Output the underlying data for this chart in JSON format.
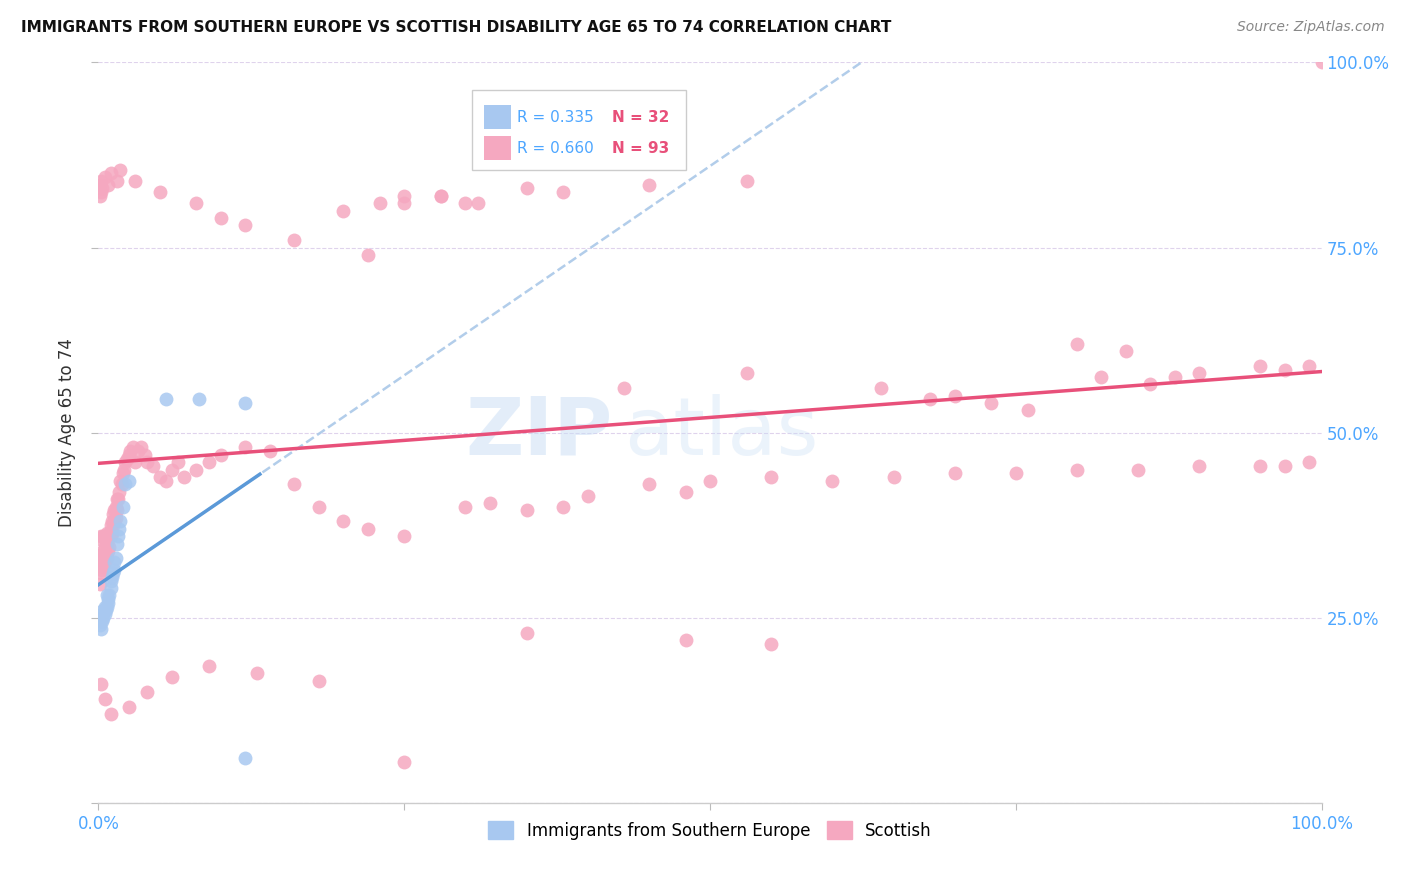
{
  "title": "IMMIGRANTS FROM SOUTHERN EUROPE VS SCOTTISH DISABILITY AGE 65 TO 74 CORRELATION CHART",
  "source": "Source: ZipAtlas.com",
  "ylabel": "Disability Age 65 to 74",
  "legend_label1": "Immigrants from Southern Europe",
  "legend_label2": "Scottish",
  "R1": 0.335,
  "N1": 32,
  "R2": 0.66,
  "N2": 93,
  "color_blue": "#a8c8f0",
  "color_pink": "#f5a8c0",
  "color_blue_line": "#5b99d8",
  "color_pink_line": "#e8507a",
  "color_dash": "#aac8e8",
  "xlim": [
    0.0,
    1.0
  ],
  "ylim": [
    0.0,
    1.0
  ],
  "blue_x": [
    0.001,
    0.002,
    0.002,
    0.003,
    0.003,
    0.004,
    0.004,
    0.005,
    0.005,
    0.006,
    0.007,
    0.007,
    0.008,
    0.008,
    0.009,
    0.01,
    0.01,
    0.011,
    0.012,
    0.013,
    0.013,
    0.014,
    0.015,
    0.016,
    0.017,
    0.018,
    0.02,
    0.022,
    0.025,
    0.055,
    0.082,
    0.12
  ],
  "blue_y": [
    0.24,
    0.235,
    0.25,
    0.245,
    0.255,
    0.25,
    0.26,
    0.255,
    0.265,
    0.26,
    0.265,
    0.28,
    0.27,
    0.275,
    0.28,
    0.29,
    0.3,
    0.305,
    0.31,
    0.315,
    0.325,
    0.33,
    0.35,
    0.36,
    0.37,
    0.38,
    0.4,
    0.43,
    0.435,
    0.545,
    0.545,
    0.54
  ],
  "pink_x": [
    0.001,
    0.001,
    0.001,
    0.002,
    0.002,
    0.002,
    0.003,
    0.003,
    0.003,
    0.004,
    0.004,
    0.004,
    0.005,
    0.005,
    0.005,
    0.006,
    0.006,
    0.007,
    0.007,
    0.007,
    0.008,
    0.008,
    0.009,
    0.009,
    0.01,
    0.01,
    0.011,
    0.011,
    0.012,
    0.012,
    0.013,
    0.013,
    0.014,
    0.014,
    0.015,
    0.015,
    0.016,
    0.017,
    0.018,
    0.019,
    0.02,
    0.021,
    0.022,
    0.023,
    0.025,
    0.026,
    0.028,
    0.03,
    0.032,
    0.035,
    0.038,
    0.04,
    0.045,
    0.05,
    0.055,
    0.06,
    0.065,
    0.07,
    0.08,
    0.09,
    0.1,
    0.12,
    0.14,
    0.16,
    0.18,
    0.2,
    0.22,
    0.25,
    0.3,
    0.32,
    0.35,
    0.38,
    0.4,
    0.45,
    0.48,
    0.5,
    0.55,
    0.6,
    0.65,
    0.7,
    0.75,
    0.8,
    0.85,
    0.9,
    0.95,
    0.97,
    0.99,
    1.0,
    0.2,
    0.23,
    0.25,
    0.28,
    0.31
  ],
  "pink_y": [
    0.295,
    0.32,
    0.335,
    0.31,
    0.33,
    0.36,
    0.315,
    0.335,
    0.355,
    0.32,
    0.34,
    0.36,
    0.325,
    0.345,
    0.36,
    0.335,
    0.355,
    0.33,
    0.35,
    0.365,
    0.34,
    0.36,
    0.345,
    0.365,
    0.36,
    0.375,
    0.365,
    0.38,
    0.375,
    0.39,
    0.38,
    0.395,
    0.385,
    0.4,
    0.395,
    0.41,
    0.41,
    0.42,
    0.435,
    0.43,
    0.445,
    0.45,
    0.46,
    0.465,
    0.47,
    0.475,
    0.48,
    0.46,
    0.475,
    0.48,
    0.47,
    0.46,
    0.455,
    0.44,
    0.435,
    0.45,
    0.46,
    0.44,
    0.45,
    0.46,
    0.47,
    0.48,
    0.475,
    0.43,
    0.4,
    0.38,
    0.37,
    0.36,
    0.4,
    0.405,
    0.395,
    0.4,
    0.415,
    0.43,
    0.42,
    0.435,
    0.44,
    0.435,
    0.44,
    0.445,
    0.445,
    0.45,
    0.45,
    0.455,
    0.455,
    0.455,
    0.46,
    1.0,
    0.8,
    0.81,
    0.82,
    0.82,
    0.81
  ],
  "pink_outlier_x": [
    0.001,
    0.001,
    0.002,
    0.002,
    0.003,
    0.005,
    0.008,
    0.01,
    0.015,
    0.018,
    0.03,
    0.05,
    0.08,
    0.1,
    0.12,
    0.16,
    0.22,
    0.25,
    0.28,
    0.3,
    0.35,
    0.38,
    0.45,
    0.53,
    0.43,
    0.53,
    0.64,
    0.68,
    0.7,
    0.73,
    0.76,
    0.8,
    0.82,
    0.84,
    0.86,
    0.88,
    0.9,
    0.95,
    0.97,
    0.99
  ],
  "pink_outlier_y": [
    0.82,
    0.835,
    0.825,
    0.84,
    0.83,
    0.845,
    0.835,
    0.85,
    0.84,
    0.855,
    0.84,
    0.825,
    0.81,
    0.79,
    0.78,
    0.76,
    0.74,
    0.81,
    0.82,
    0.81,
    0.83,
    0.825,
    0.835,
    0.84,
    0.56,
    0.58,
    0.56,
    0.545,
    0.55,
    0.54,
    0.53,
    0.62,
    0.575,
    0.61,
    0.565,
    0.575,
    0.58,
    0.59,
    0.585,
    0.59
  ],
  "pink_low_x": [
    0.002,
    0.005,
    0.01,
    0.025,
    0.04,
    0.06,
    0.09,
    0.13,
    0.18,
    0.25,
    0.35,
    0.48,
    0.55
  ],
  "pink_low_y": [
    0.16,
    0.14,
    0.12,
    0.13,
    0.15,
    0.17,
    0.185,
    0.175,
    0.165,
    0.055,
    0.23,
    0.22,
    0.215
  ],
  "blue_low_x": [
    0.12
  ],
  "blue_low_y": [
    0.06
  ]
}
